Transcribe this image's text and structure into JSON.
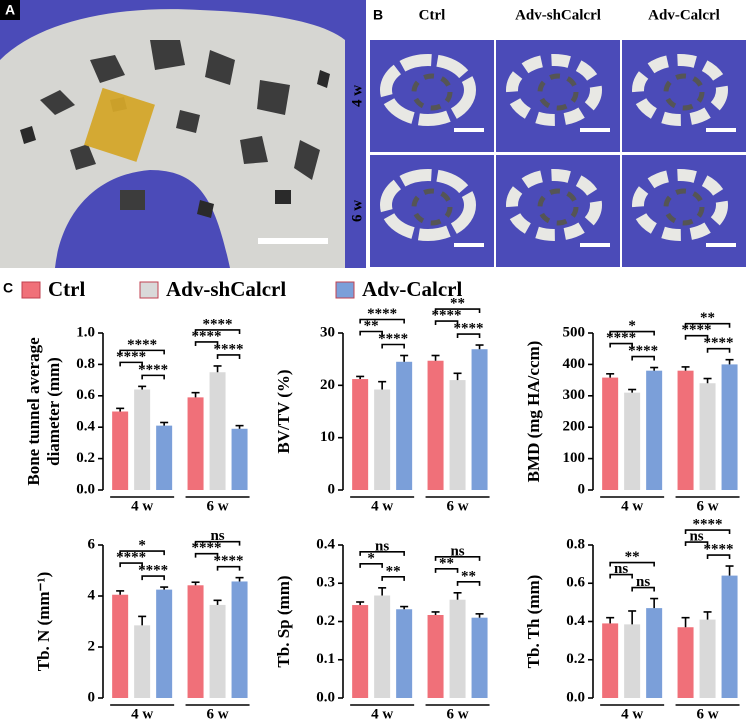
{
  "panels": {
    "a_label": "A",
    "b_label": "B",
    "c_label": "C"
  },
  "chart_data": [
    {
      "type": "bar",
      "ylabel": [
        "Bone tunnel average",
        "diameter (mm)"
      ],
      "categories": [
        "4 w",
        "6 w"
      ],
      "ylim": [
        0,
        1
      ],
      "yticks": [
        {
          "value": 0,
          "label": "0.0"
        },
        0.2,
        0.4,
        0.6,
        0.8,
        {
          "value": 1,
          "label": "1.0"
        }
      ],
      "series": [
        {
          "name": "Ctrl",
          "color": "#f07079",
          "values": [
            0.5,
            0.59
          ],
          "errors": [
            0.02,
            0.03
          ]
        },
        {
          "name": "Adv-shCalcrl",
          "color": "#d9d9d9",
          "values": [
            0.64,
            0.75
          ],
          "errors": [
            0.02,
            0.04
          ]
        },
        {
          "name": "Adv-Calcrl",
          "color": "#7b9fd9",
          "values": [
            0.41,
            0.39
          ],
          "errors": [
            0.02,
            0.02
          ]
        }
      ],
      "comparisons": [
        {
          "group": 0,
          "from": 0,
          "to": 2,
          "label": "****"
        },
        {
          "group": 0,
          "from": 0,
          "to": 1,
          "label": "****"
        },
        {
          "group": 0,
          "from": 1,
          "to": 2,
          "label": "****"
        },
        {
          "group": 1,
          "from": 0,
          "to": 2,
          "label": "****"
        },
        {
          "group": 1,
          "from": 0,
          "to": 1,
          "label": "****"
        },
        {
          "group": 1,
          "from": 1,
          "to": 2,
          "label": "****"
        }
      ]
    },
    {
      "type": "bar",
      "ylabel": [
        "BV/TV (%)"
      ],
      "categories": [
        "4 w",
        "6 w"
      ],
      "ylim": [
        0,
        30
      ],
      "yticks": [
        0,
        10,
        20,
        30
      ],
      "series": [
        {
          "name": "Ctrl",
          "color": "#f07079",
          "values": [
            21.2,
            24.7
          ],
          "errors": [
            0.5,
            1.0
          ]
        },
        {
          "name": "Adv-shCalcrl",
          "color": "#d9d9d9",
          "values": [
            19.2,
            21.0
          ],
          "errors": [
            1.5,
            1.3
          ]
        },
        {
          "name": "Adv-Calcrl",
          "color": "#7b9fd9",
          "values": [
            24.5,
            26.9
          ],
          "errors": [
            1.2,
            0.8
          ]
        }
      ],
      "comparisons": [
        {
          "group": 0,
          "from": 0,
          "to": 2,
          "label": "****"
        },
        {
          "group": 0,
          "from": 0,
          "to": 1,
          "label": "**"
        },
        {
          "group": 0,
          "from": 1,
          "to": 2,
          "label": "****"
        },
        {
          "group": 1,
          "from": 0,
          "to": 2,
          "label": "**"
        },
        {
          "group": 1,
          "from": 0,
          "to": 1,
          "label": "****"
        },
        {
          "group": 1,
          "from": 1,
          "to": 2,
          "label": "****"
        }
      ]
    },
    {
      "type": "bar",
      "ylabel": [
        "BMD (mg HA/ccm)"
      ],
      "categories": [
        "4 w",
        "6 w"
      ],
      "ylim": [
        0,
        500
      ],
      "yticks": [
        0,
        100,
        200,
        300,
        400,
        500
      ],
      "series": [
        {
          "name": "Ctrl",
          "color": "#f07079",
          "values": [
            358,
            380
          ],
          "errors": [
            12,
            12
          ]
        },
        {
          "name": "Adv-shCalcrl",
          "color": "#d9d9d9",
          "values": [
            310,
            340
          ],
          "errors": [
            10,
            15
          ]
        },
        {
          "name": "Adv-Calcrl",
          "color": "#7b9fd9",
          "values": [
            380,
            400
          ],
          "errors": [
            10,
            15
          ]
        }
      ],
      "comparisons": [
        {
          "group": 0,
          "from": 0,
          "to": 2,
          "label": "*"
        },
        {
          "group": 0,
          "from": 0,
          "to": 1,
          "label": "****"
        },
        {
          "group": 0,
          "from": 1,
          "to": 2,
          "label": "****"
        },
        {
          "group": 1,
          "from": 0,
          "to": 2,
          "label": "**"
        },
        {
          "group": 1,
          "from": 0,
          "to": 1,
          "label": "****"
        },
        {
          "group": 1,
          "from": 1,
          "to": 2,
          "label": "****"
        }
      ]
    },
    {
      "type": "bar",
      "ylabel": [
        "Tb. N (mm⁻¹)"
      ],
      "categories": [
        "4 w",
        "6 w"
      ],
      "ylim": [
        0,
        6
      ],
      "yticks": [
        0,
        2,
        4,
        6
      ],
      "series": [
        {
          "name": "Ctrl",
          "color": "#f07079",
          "values": [
            4.05,
            4.42
          ],
          "errors": [
            0.15,
            0.12
          ]
        },
        {
          "name": "Adv-shCalcrl",
          "color": "#d9d9d9",
          "values": [
            2.85,
            3.65
          ],
          "errors": [
            0.35,
            0.18
          ]
        },
        {
          "name": "Adv-Calcrl",
          "color": "#7b9fd9",
          "values": [
            4.25,
            4.57
          ],
          "errors": [
            0.1,
            0.15
          ]
        }
      ],
      "comparisons": [
        {
          "group": 0,
          "from": 0,
          "to": 2,
          "label": "*"
        },
        {
          "group": 0,
          "from": 0,
          "to": 1,
          "label": "****"
        },
        {
          "group": 0,
          "from": 1,
          "to": 2,
          "label": "****"
        },
        {
          "group": 1,
          "from": 0,
          "to": 2,
          "label": "ns"
        },
        {
          "group": 1,
          "from": 0,
          "to": 1,
          "label": "****"
        },
        {
          "group": 1,
          "from": 1,
          "to": 2,
          "label": "****"
        }
      ]
    },
    {
      "type": "bar",
      "ylabel": [
        "Tb. Sp (mm)"
      ],
      "categories": [
        "4 w",
        "6 w"
      ],
      "ylim": [
        0,
        0.4
      ],
      "yticks": [
        {
          "value": 0,
          "label": "0.0"
        },
        0.1,
        0.2,
        0.3,
        0.4
      ],
      "series": [
        {
          "name": "Ctrl",
          "color": "#f07079",
          "values": [
            0.243,
            0.217
          ],
          "errors": [
            0.008,
            0.008
          ]
        },
        {
          "name": "Adv-shCalcrl",
          "color": "#d9d9d9",
          "values": [
            0.268,
            0.257
          ],
          "errors": [
            0.02,
            0.018
          ]
        },
        {
          "name": "Adv-Calcrl",
          "color": "#7b9fd9",
          "values": [
            0.232,
            0.21
          ],
          "errors": [
            0.007,
            0.01
          ]
        }
      ],
      "comparisons": [
        {
          "group": 0,
          "from": 0,
          "to": 2,
          "label": "ns"
        },
        {
          "group": 0,
          "from": 0,
          "to": 1,
          "label": "*"
        },
        {
          "group": 0,
          "from": 1,
          "to": 2,
          "label": "**"
        },
        {
          "group": 1,
          "from": 0,
          "to": 2,
          "label": "ns"
        },
        {
          "group": 1,
          "from": 0,
          "to": 1,
          "label": "**"
        },
        {
          "group": 1,
          "from": 1,
          "to": 2,
          "label": "**"
        }
      ]
    },
    {
      "type": "bar",
      "ylabel": [
        "Tb. Th (mm)"
      ],
      "categories": [
        "4 w",
        "6 w"
      ],
      "ylim": [
        0,
        0.8
      ],
      "yticks": [
        {
          "value": 0,
          "label": "0.0"
        },
        0.2,
        0.4,
        0.6,
        0.8
      ],
      "series": [
        {
          "name": "Ctrl",
          "color": "#f07079",
          "values": [
            0.39,
            0.37
          ],
          "errors": [
            0.03,
            0.05
          ]
        },
        {
          "name": "Adv-shCalcrl",
          "color": "#d9d9d9",
          "values": [
            0.385,
            0.41
          ],
          "errors": [
            0.07,
            0.04
          ]
        },
        {
          "name": "Adv-Calcrl",
          "color": "#7b9fd9",
          "values": [
            0.47,
            0.64
          ],
          "errors": [
            0.05,
            0.05
          ]
        }
      ],
      "comparisons": [
        {
          "group": 0,
          "from": 0,
          "to": 2,
          "label": "**"
        },
        {
          "group": 0,
          "from": 0,
          "to": 1,
          "label": "ns"
        },
        {
          "group": 0,
          "from": 1,
          "to": 2,
          "label": "ns"
        },
        {
          "group": 1,
          "from": 0,
          "to": 2,
          "label": "****"
        },
        {
          "group": 1,
          "from": 0,
          "to": 1,
          "label": "ns"
        },
        {
          "group": 1,
          "from": 1,
          "to": 2,
          "label": "****"
        }
      ]
    }
  ]
}
